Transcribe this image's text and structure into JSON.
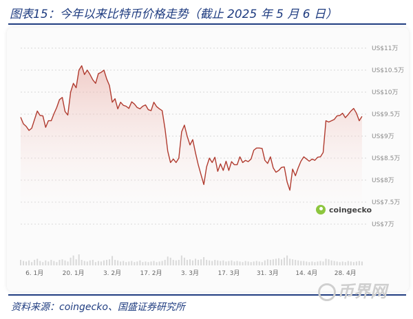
{
  "header": {
    "title": "图表15：今年以来比特币价格走势（截止 2025 年 5 月 6 日）"
  },
  "footer": {
    "source": "资料来源：coingecko、国盛证券研究所"
  },
  "badge": {
    "label": "coingecko"
  },
  "watermark": {
    "text": "币界网"
  },
  "colors": {
    "line": "#b03a2e",
    "fill_top": "#e8a79f",
    "fill_bottom": "#ffffff",
    "volume": "#d9d9d9",
    "grid": "#cccccc"
  },
  "chart_data": {
    "type": "area",
    "title": "",
    "xlabel": "",
    "ylabel": "",
    "ylim": [
      7,
      11
    ],
    "y_ticks": [
      {
        "value": 11,
        "label": "US$11万"
      },
      {
        "value": 10.5,
        "label": "US$10.5万"
      },
      {
        "value": 10,
        "label": "US$10万"
      },
      {
        "value": 9.5,
        "label": "US$9.5万"
      },
      {
        "value": 9,
        "label": "US$9万"
      },
      {
        "value": 8.5,
        "label": "US$8.5万"
      },
      {
        "value": 8,
        "label": "US$8万"
      },
      {
        "value": 7.5,
        "label": "US$7.5万"
      },
      {
        "value": 7,
        "label": "US$7万"
      }
    ],
    "x_ticks": [
      {
        "day": 5,
        "label": "6. 1月"
      },
      {
        "day": 19,
        "label": "20. 1月"
      },
      {
        "day": 33,
        "label": "3. 2月"
      },
      {
        "day": 47,
        "label": "17. 2月"
      },
      {
        "day": 61,
        "label": "3. 3月"
      },
      {
        "day": 75,
        "label": "17. 3月"
      },
      {
        "day": 89,
        "label": "31. 3月"
      },
      {
        "day": 103,
        "label": "14. 4月"
      },
      {
        "day": 117,
        "label": "28. 4月"
      }
    ],
    "x_range": [
      0,
      125
    ],
    "grid": true,
    "series": [
      {
        "points": [
          [
            0,
            9.43
          ],
          [
            1,
            9.28
          ],
          [
            2,
            9.22
          ],
          [
            3,
            9.13
          ],
          [
            4,
            9.18
          ],
          [
            5,
            9.38
          ],
          [
            6,
            9.57
          ],
          [
            7,
            9.47
          ],
          [
            8,
            9.46
          ],
          [
            9,
            9.2
          ],
          [
            10,
            9.35
          ],
          [
            11,
            9.35
          ],
          [
            12,
            9.51
          ],
          [
            13,
            9.65
          ],
          [
            14,
            9.83
          ],
          [
            15,
            9.88
          ],
          [
            16,
            9.56
          ],
          [
            17,
            9.48
          ],
          [
            18,
            10.0
          ],
          [
            19,
            10.2
          ],
          [
            20,
            10.1
          ],
          [
            21,
            10.5
          ],
          [
            22,
            10.6
          ],
          [
            23,
            10.4
          ],
          [
            24,
            10.5
          ],
          [
            25,
            10.4
          ],
          [
            26,
            10.28
          ],
          [
            27,
            10.2
          ],
          [
            28,
            10.42
          ],
          [
            29,
            10.45
          ],
          [
            30,
            10.5
          ],
          [
            31,
            10.3
          ],
          [
            32,
            10.15
          ],
          [
            33,
            9.77
          ],
          [
            34,
            9.85
          ],
          [
            35,
            9.62
          ],
          [
            36,
            9.77
          ],
          [
            37,
            9.7
          ],
          [
            38,
            9.68
          ],
          [
            39,
            9.63
          ],
          [
            40,
            9.78
          ],
          [
            41,
            9.73
          ],
          [
            42,
            9.65
          ],
          [
            43,
            9.62
          ],
          [
            44,
            9.68
          ],
          [
            45,
            9.71
          ],
          [
            46,
            9.6
          ],
          [
            47,
            9.58
          ],
          [
            48,
            9.77
          ],
          [
            49,
            9.67
          ],
          [
            50,
            9.62
          ],
          [
            51,
            9.58
          ],
          [
            52,
            9.17
          ],
          [
            53,
            8.66
          ],
          [
            54,
            8.4
          ],
          [
            55,
            8.48
          ],
          [
            56,
            8.4
          ],
          [
            57,
            8.5
          ],
          [
            58,
            9.1
          ],
          [
            59,
            9.25
          ],
          [
            60,
            9.0
          ],
          [
            61,
            8.8
          ],
          [
            62,
            8.92
          ],
          [
            63,
            8.62
          ],
          [
            64,
            8.35
          ],
          [
            65,
            8.12
          ],
          [
            66,
            7.9
          ],
          [
            67,
            8.3
          ],
          [
            68,
            8.5
          ],
          [
            69,
            8.4
          ],
          [
            70,
            8.52
          ],
          [
            71,
            8.2
          ],
          [
            72,
            8.37
          ],
          [
            73,
            8.22
          ],
          [
            74,
            8.43
          ],
          [
            75,
            8.22
          ],
          [
            76,
            8.42
          ],
          [
            77,
            8.35
          ],
          [
            78,
            8.35
          ],
          [
            79,
            8.53
          ],
          [
            80,
            8.4
          ],
          [
            81,
            8.45
          ],
          [
            82,
            8.42
          ],
          [
            83,
            8.48
          ],
          [
            84,
            8.68
          ],
          [
            85,
            8.73
          ],
          [
            86,
            8.73
          ],
          [
            87,
            8.72
          ],
          [
            88,
            8.45
          ],
          [
            89,
            8.38
          ],
          [
            90,
            8.53
          ],
          [
            91,
            8.28
          ],
          [
            92,
            8.18
          ],
          [
            93,
            8.22
          ],
          [
            94,
            8.29
          ],
          [
            95,
            8.3
          ],
          [
            96,
            7.96
          ],
          [
            97,
            7.77
          ],
          [
            98,
            8.25
          ],
          [
            99,
            8.1
          ],
          [
            100,
            8.28
          ],
          [
            101,
            8.43
          ],
          [
            102,
            8.53
          ],
          [
            103,
            8.48
          ],
          [
            104,
            8.43
          ],
          [
            105,
            8.48
          ],
          [
            106,
            8.45
          ],
          [
            107,
            8.52
          ],
          [
            108,
            8.53
          ],
          [
            109,
            8.63
          ],
          [
            110,
            9.35
          ],
          [
            111,
            9.32
          ],
          [
            112,
            9.35
          ],
          [
            113,
            9.38
          ],
          [
            114,
            9.46
          ],
          [
            115,
            9.47
          ],
          [
            116,
            9.52
          ],
          [
            117,
            9.42
          ],
          [
            118,
            9.49
          ],
          [
            119,
            9.57
          ],
          [
            120,
            9.63
          ],
          [
            121,
            9.52
          ],
          [
            122,
            9.35
          ],
          [
            123,
            9.45
          ]
        ]
      }
    ],
    "volume_range": [
      0,
      1
    ],
    "volume": [
      0.5,
      0.4,
      0.35,
      0.45,
      0.3,
      0.5,
      0.6,
      0.4,
      0.3,
      0.45,
      0.35,
      0.5,
      0.4,
      0.3,
      0.5,
      0.55,
      0.45,
      0.35,
      0.7,
      0.9,
      0.55,
      1.0,
      0.5,
      0.4,
      0.35,
      0.45,
      0.5,
      0.3,
      0.4,
      0.35,
      0.45,
      0.5,
      0.55,
      0.85,
      0.5,
      0.45,
      0.35,
      0.4,
      0.3,
      0.35,
      0.4,
      0.3,
      0.35,
      0.45,
      0.3,
      0.35,
      0.3,
      0.35,
      0.4,
      0.3,
      0.35,
      0.4,
      0.5,
      0.8,
      0.7,
      0.5,
      0.45,
      0.5,
      0.9,
      0.7,
      0.5,
      0.55,
      0.45,
      0.6,
      0.5,
      0.55,
      0.75,
      0.5,
      0.45,
      0.4,
      0.5,
      0.45,
      0.4,
      0.45,
      0.35,
      0.4,
      0.45,
      0.35,
      0.4,
      0.35,
      0.3,
      0.4,
      0.35,
      0.3,
      0.35,
      0.4,
      0.35,
      0.3,
      0.45,
      0.55,
      0.5,
      0.55,
      0.6,
      0.65,
      0.55,
      0.7,
      0.9,
      0.6,
      0.55,
      0.5,
      0.45,
      0.4,
      0.4,
      0.35,
      0.3,
      0.35,
      0.3,
      0.35,
      0.4,
      0.35,
      0.6,
      0.55,
      0.45,
      0.4,
      0.35,
      0.3,
      0.35,
      0.3,
      0.4,
      0.35,
      0.3,
      0.35,
      0.4,
      0.35
    ]
  }
}
